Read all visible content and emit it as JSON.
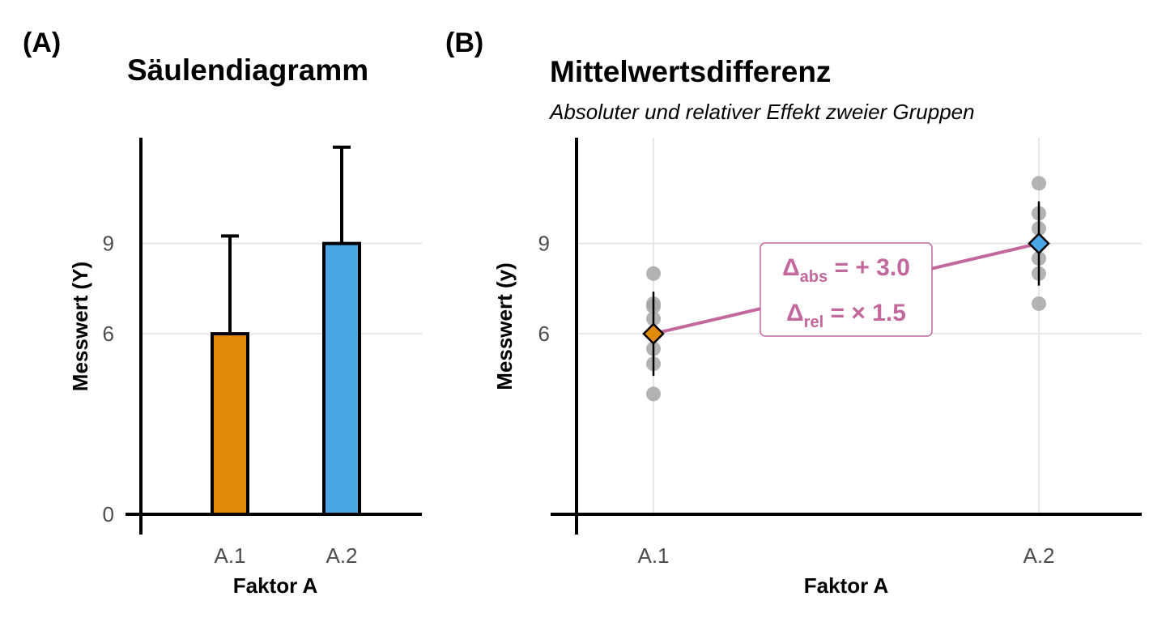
{
  "colors": {
    "a1": "#e08c0a",
    "a2": "#4aa6e5",
    "accent": "#c2689c",
    "points": "#a6a6a6",
    "grid": "#e6e6e6"
  },
  "panel_a": {
    "letter": "(A)",
    "title": "Säulendiagramm",
    "xlabel": "Faktor A",
    "ylabel": "Messwert (Y)"
  },
  "panel_b": {
    "letter": "(B)",
    "title": "Mittelwertsdifferenz",
    "subtitle": "Absoluter und relativer Effekt zweier Gruppen",
    "xlabel": "Faktor A",
    "ylabel": "Messwert (y)",
    "annotation": {
      "delta": "Δ",
      "abs_sub": "abs",
      "abs_text": " = + 3.0",
      "rel_sub": "rel",
      "rel_text": " = × 1.5"
    }
  },
  "chart_data": [
    {
      "type": "bar",
      "categories": [
        "A.1",
        "A.2"
      ],
      "values": [
        6,
        9
      ],
      "error_upper": [
        9.25,
        12.2
      ],
      "yticks": [
        0,
        6,
        9
      ],
      "ylim": [
        0,
        12.6
      ],
      "title": "Säulendiagramm",
      "xlabel": "Faktor A",
      "ylabel": "Messwert (Y)",
      "grid": true
    },
    {
      "type": "scatter",
      "categories": [
        "A.1",
        "A.2"
      ],
      "means": [
        6,
        9
      ],
      "error_lower": [
        4.6,
        7.6
      ],
      "error_upper": [
        7.4,
        10.4
      ],
      "points": [
        [
          4.0,
          5.0,
          5.5,
          6.0,
          6.5,
          6.9,
          7.0,
          8.0
        ],
        [
          7.0,
          8.0,
          8.5,
          9.0,
          9.5,
          10.0,
          11.0
        ]
      ],
      "yticks": [
        6,
        9
      ],
      "ylim": [
        0,
        12.6
      ],
      "title": "Mittelwertsdifferenz",
      "subtitle": "Absoluter und relativer Effekt zweier Gruppen",
      "xlabel": "Faktor A",
      "ylabel": "Messwert (y)",
      "grid": true
    }
  ]
}
